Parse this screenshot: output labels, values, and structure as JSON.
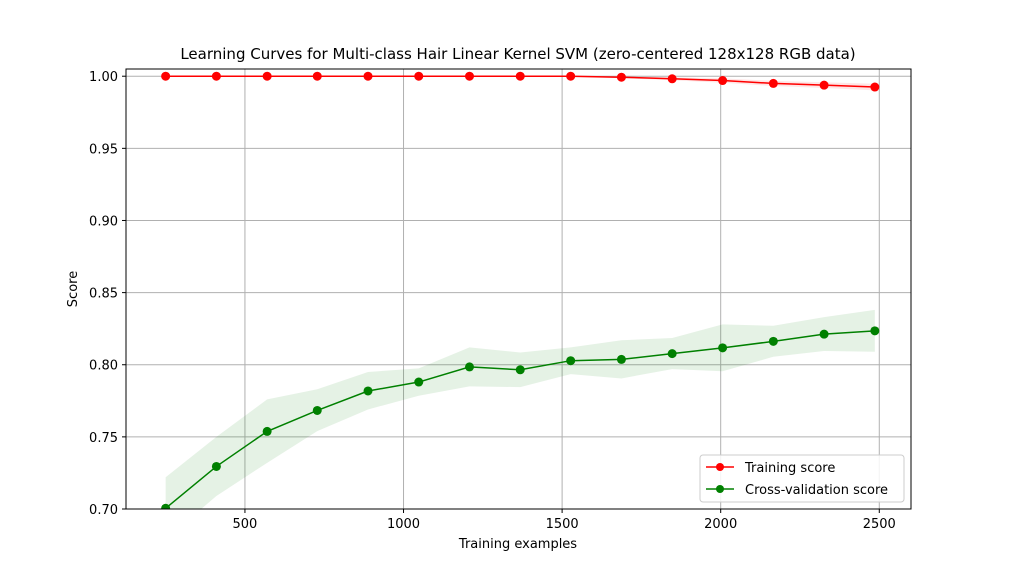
{
  "chart_data": {
    "type": "line",
    "title": "Learning Curves for Multi-class Hair Linear Kernel SVM (zero-centered 128x128 RGB data)",
    "xlabel": "Training examples",
    "ylabel": "Score",
    "xlim": [
      125,
      2600
    ],
    "ylim": [
      0.7,
      1.005
    ],
    "xticks": [
      500,
      1000,
      1500,
      2000,
      2500
    ],
    "xtick_labels": [
      "500",
      "1000",
      "1500",
      "2000",
      "2500"
    ],
    "yticks": [
      0.7,
      0.75,
      0.8,
      0.85,
      0.9,
      0.95,
      1.0
    ],
    "ytick_labels": [
      "0.70",
      "0.75",
      "0.80",
      "0.85",
      "0.90",
      "0.95",
      "1.00"
    ],
    "grid": true,
    "legend_position": "lower-right",
    "x": [
      250,
      410,
      570,
      728,
      888,
      1048,
      1208,
      1368,
      1527,
      1687,
      1847,
      2006,
      2166,
      2326,
      2486
    ],
    "series": [
      {
        "name": "Training score",
        "color": "#ff0000",
        "values": [
          1.0,
          1.0,
          1.0,
          1.0,
          1.0,
          1.0,
          1.0,
          1.0,
          1.0,
          0.9993,
          0.9982,
          0.997,
          0.995,
          0.9938,
          0.9925
        ],
        "band_upper": [
          1.0,
          1.0,
          1.0,
          1.0,
          1.0,
          1.0,
          1.0,
          1.0,
          1.0,
          1.0,
          0.9992,
          0.9985,
          0.9968,
          0.9958,
          0.9948
        ],
        "band_lower": [
          1.0,
          1.0,
          1.0,
          1.0,
          1.0,
          1.0,
          1.0,
          1.0,
          0.9998,
          0.9986,
          0.9972,
          0.9955,
          0.9932,
          0.9918,
          0.9902
        ]
      },
      {
        "name": "Cross-validation score",
        "color": "#008000",
        "values": [
          0.7005,
          0.7295,
          0.7538,
          0.7683,
          0.7818,
          0.788,
          0.7985,
          0.7965,
          0.8028,
          0.8037,
          0.8077,
          0.8117,
          0.8162,
          0.8212,
          0.8235
        ],
        "band_upper": [
          0.722,
          0.75,
          0.776,
          0.783,
          0.795,
          0.7975,
          0.812,
          0.8085,
          0.812,
          0.817,
          0.8185,
          0.828,
          0.827,
          0.833,
          0.838
        ],
        "band_lower": [
          0.679,
          0.709,
          0.732,
          0.754,
          0.769,
          0.7785,
          0.785,
          0.7845,
          0.7935,
          0.7905,
          0.797,
          0.7955,
          0.8055,
          0.8095,
          0.809
        ]
      }
    ]
  }
}
